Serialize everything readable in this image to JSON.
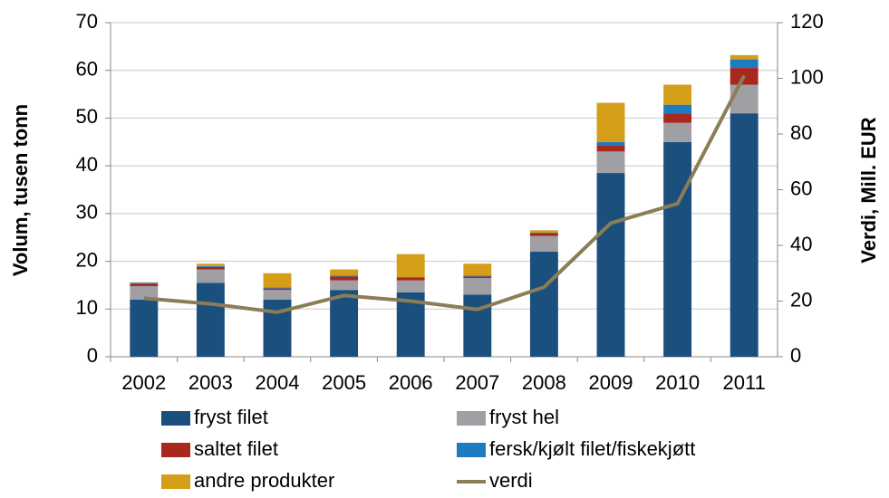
{
  "chart_data": {
    "type": "bar",
    "stacked": true,
    "categories": [
      "2002",
      "2003",
      "2004",
      "2005",
      "2006",
      "2007",
      "2008",
      "2009",
      "2010",
      "2011"
    ],
    "ylabel": "Volum, tusen tonn",
    "y2label": "Verdi, Mill. EUR",
    "ylim": [
      0,
      70
    ],
    "yticks": [
      0,
      10,
      20,
      30,
      40,
      50,
      60,
      70
    ],
    "y2lim": [
      0,
      120
    ],
    "y2ticks": [
      0,
      20,
      40,
      60,
      80,
      100,
      120
    ],
    "grid": true,
    "series": [
      {
        "name": "fryst filet",
        "color": "#1b4f7e",
        "values": [
          12,
          15.5,
          12,
          14,
          13.5,
          13,
          22,
          38.5,
          45,
          51
        ]
      },
      {
        "name": "fryst hel",
        "color": "#a0a0a4",
        "values": [
          2.8,
          2.8,
          2,
          2,
          2.5,
          3.5,
          3.3,
          4.5,
          4,
          6
        ]
      },
      {
        "name": "saltet filet",
        "color": "#a8281e",
        "values": [
          0.5,
          0.5,
          0.3,
          0.8,
          0.5,
          0.3,
          0.5,
          1.2,
          2,
          3.5
        ]
      },
      {
        "name": "fersk/kjølt filet/fiskekjøtt",
        "color": "#1f7bbf",
        "values": [
          0.2,
          0.2,
          0.2,
          0.2,
          0.2,
          0.2,
          0.2,
          0.8,
          1.8,
          1.8
        ]
      },
      {
        "name": "andre produkter",
        "color": "#d49e19",
        "values": [
          0.1,
          0.5,
          3,
          1.3,
          4.8,
          2.5,
          0.5,
          8.2,
          4.2,
          0.9
        ]
      },
      {
        "name": "verdi",
        "color": "#8b7d55",
        "type": "line",
        "axis": "y2",
        "values": [
          21,
          19,
          16,
          22,
          20,
          17,
          25,
          48,
          55,
          101
        ]
      }
    ]
  }
}
